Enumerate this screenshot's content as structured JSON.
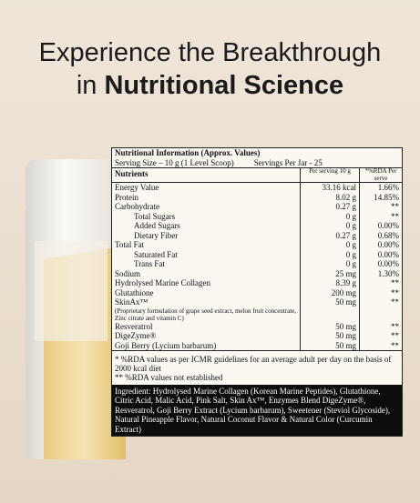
{
  "header": {
    "line1": "Experience the Breakthrough",
    "line2_prefix": "in",
    "line2_bold": "Nutritional Science"
  },
  "table": {
    "title": "Nutritional Information (Approx. Values)",
    "serving_size": "Serving Size – 10 g (1 Level Scoop)",
    "servings_per_jar": "Servings Per Jar - 25",
    "columns": [
      "Nutrients",
      "Per serving 10 g",
      "*%RDA Per serve"
    ],
    "rows": [
      {
        "name": "Energy Value",
        "serving": "33.16 kcal",
        "rda": "1.66%"
      },
      {
        "name": "Protein",
        "serving": "8.02 g",
        "rda": "14.85%"
      },
      {
        "name": "Carbohydrate",
        "serving": "0.27 g",
        "rda": "**",
        "children": [
          {
            "name": "Total Sugars",
            "serving": "0 g",
            "rda": "**"
          },
          {
            "name": "Added Sugars",
            "serving": "0 g",
            "rda": "0.00%"
          },
          {
            "name": "Dietary Fiber",
            "serving": "0.27 g",
            "rda": "0.68%"
          }
        ]
      },
      {
        "name": "Total Fat",
        "serving": "0 g",
        "rda": "0.00%",
        "children": [
          {
            "name": "Saturated Fat",
            "serving": "0 g",
            "rda": "0.00%"
          },
          {
            "name": "Trans Fat",
            "serving": "0 g",
            "rda": "0.00%"
          }
        ]
      },
      {
        "name": "Sodium",
        "serving": "25 mg",
        "rda": "1.30%"
      },
      {
        "name": "Hydrolysed Marine Collagen",
        "serving": "8.39 g",
        "rda": "**"
      },
      {
        "name": "Glutathione",
        "serving": "200 mg",
        "rda": "**"
      },
      {
        "name": "SkinAx™",
        "note": "(Proprietary formulation of grape seed extract, melon fruit concentrate, Zinc citrate and vitamin C)",
        "serving": "50 mg",
        "rda": "**"
      },
      {
        "name": "Resveratrol",
        "serving": "50 mg",
        "rda": "**"
      },
      {
        "name": "DigeZyme®",
        "serving": "50 mg",
        "rda": "**"
      },
      {
        "name": "Goji Berry (Lycium barbarum)",
        "serving": "50 mg",
        "rda": "**"
      }
    ],
    "footnotes": [
      "* %RDA values as per ICMR guidelines for an average adult per day on the basis of 2000 kcal diet",
      "** %RDA values not established"
    ],
    "ingredients": "Ingredient: Hydrolysed Marine Collagen (Korean Marine Peptides), Glutathione, Citric Acid, Malic Acid, Pink Salt, Skin Ax™, Enzymes Blend DigeZyme®, Resveratrol, Goji Berry Extract (Lycium barbarum), Sweetener (Steviol Glycoside), Natural Pineapple Flavor, Natural Coconut Flavor & Natural Color (Curcumin Extract)"
  }
}
